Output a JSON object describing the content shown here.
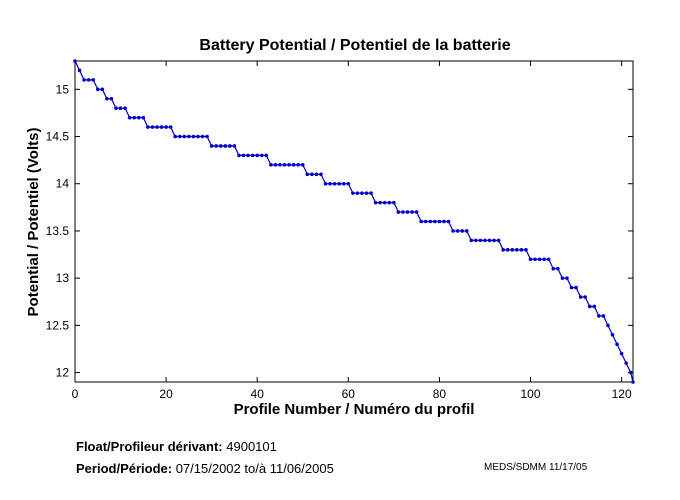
{
  "chart_data": {
    "type": "line",
    "title": "Battery Potential / Potentiel de la batterie",
    "xlabel": "Profile Number / Numéro du profil",
    "ylabel": "Potential / Potentiel (Volts)",
    "xlim": [
      0,
      122.5
    ],
    "ylim": [
      11.9,
      15.3
    ],
    "xticks": [
      0,
      20,
      40,
      60,
      80,
      100,
      120
    ],
    "yticks": [
      12,
      12.5,
      13,
      13.5,
      14,
      14.5,
      15
    ],
    "grid": false,
    "line_color": "#0000cc",
    "marker": "dot",
    "series": [
      {
        "values": [
          [
            0,
            15.3
          ],
          [
            1,
            15.2
          ],
          [
            2,
            15.1
          ],
          [
            3,
            15.1
          ],
          [
            4,
            15.1
          ],
          [
            5,
            15.0
          ],
          [
            6,
            15.0
          ],
          [
            7,
            14.9
          ],
          [
            8,
            14.9
          ],
          [
            9,
            14.8
          ],
          [
            10,
            14.8
          ],
          [
            11,
            14.8
          ],
          [
            12,
            14.7
          ],
          [
            13,
            14.7
          ],
          [
            14,
            14.7
          ],
          [
            15,
            14.7
          ],
          [
            16,
            14.6
          ],
          [
            17,
            14.6
          ],
          [
            18,
            14.6
          ],
          [
            19,
            14.6
          ],
          [
            20,
            14.6
          ],
          [
            21,
            14.6
          ],
          [
            22,
            14.5
          ],
          [
            23,
            14.5
          ],
          [
            24,
            14.5
          ],
          [
            25,
            14.5
          ],
          [
            26,
            14.5
          ],
          [
            27,
            14.5
          ],
          [
            28,
            14.5
          ],
          [
            29,
            14.5
          ],
          [
            30,
            14.4
          ],
          [
            31,
            14.4
          ],
          [
            32,
            14.4
          ],
          [
            33,
            14.4
          ],
          [
            34,
            14.4
          ],
          [
            35,
            14.4
          ],
          [
            36,
            14.3
          ],
          [
            37,
            14.3
          ],
          [
            38,
            14.3
          ],
          [
            39,
            14.3
          ],
          [
            40,
            14.3
          ],
          [
            41,
            14.3
          ],
          [
            42,
            14.3
          ],
          [
            43,
            14.2
          ],
          [
            44,
            14.2
          ],
          [
            45,
            14.2
          ],
          [
            46,
            14.2
          ],
          [
            47,
            14.2
          ],
          [
            48,
            14.2
          ],
          [
            49,
            14.2
          ],
          [
            50,
            14.2
          ],
          [
            51,
            14.1
          ],
          [
            52,
            14.1
          ],
          [
            53,
            14.1
          ],
          [
            54,
            14.1
          ],
          [
            55,
            14.0
          ],
          [
            56,
            14.0
          ],
          [
            57,
            14.0
          ],
          [
            58,
            14.0
          ],
          [
            59,
            14.0
          ],
          [
            60,
            14.0
          ],
          [
            61,
            13.9
          ],
          [
            62,
            13.9
          ],
          [
            63,
            13.9
          ],
          [
            64,
            13.9
          ],
          [
            65,
            13.9
          ],
          [
            66,
            13.8
          ],
          [
            67,
            13.8
          ],
          [
            68,
            13.8
          ],
          [
            69,
            13.8
          ],
          [
            70,
            13.8
          ],
          [
            71,
            13.7
          ],
          [
            72,
            13.7
          ],
          [
            73,
            13.7
          ],
          [
            74,
            13.7
          ],
          [
            75,
            13.7
          ],
          [
            76,
            13.6
          ],
          [
            77,
            13.6
          ],
          [
            78,
            13.6
          ],
          [
            79,
            13.6
          ],
          [
            80,
            13.6
          ],
          [
            81,
            13.6
          ],
          [
            82,
            13.6
          ],
          [
            83,
            13.5
          ],
          [
            84,
            13.5
          ],
          [
            85,
            13.5
          ],
          [
            86,
            13.5
          ],
          [
            87,
            13.4
          ],
          [
            88,
            13.4
          ],
          [
            89,
            13.4
          ],
          [
            90,
            13.4
          ],
          [
            91,
            13.4
          ],
          [
            92,
            13.4
          ],
          [
            93,
            13.4
          ],
          [
            94,
            13.3
          ],
          [
            95,
            13.3
          ],
          [
            96,
            13.3
          ],
          [
            97,
            13.3
          ],
          [
            98,
            13.3
          ],
          [
            99,
            13.3
          ],
          [
            100,
            13.2
          ],
          [
            101,
            13.2
          ],
          [
            102,
            13.2
          ],
          [
            103,
            13.2
          ],
          [
            104,
            13.2
          ],
          [
            105,
            13.1
          ],
          [
            106,
            13.1
          ],
          [
            107,
            13.0
          ],
          [
            108,
            13.0
          ],
          [
            109,
            12.9
          ],
          [
            110,
            12.9
          ],
          [
            111,
            12.8
          ],
          [
            112,
            12.8
          ],
          [
            113,
            12.7
          ],
          [
            114,
            12.7
          ],
          [
            115,
            12.6
          ],
          [
            116,
            12.6
          ],
          [
            117,
            12.5
          ],
          [
            118,
            12.4
          ],
          [
            119,
            12.3
          ],
          [
            120,
            12.2
          ],
          [
            121,
            12.1
          ],
          [
            122,
            12.0
          ],
          [
            122.5,
            11.9
          ]
        ]
      }
    ]
  },
  "footer": {
    "float_label": "Float/Profileur dérivant:",
    "float_value": "4900101",
    "period_label": "Period/Période:",
    "period_start": "07/15/2002",
    "period_sep": "to/à",
    "period_end": "11/06/2005",
    "credit": "MEDS/SDMM  11/17/05"
  }
}
